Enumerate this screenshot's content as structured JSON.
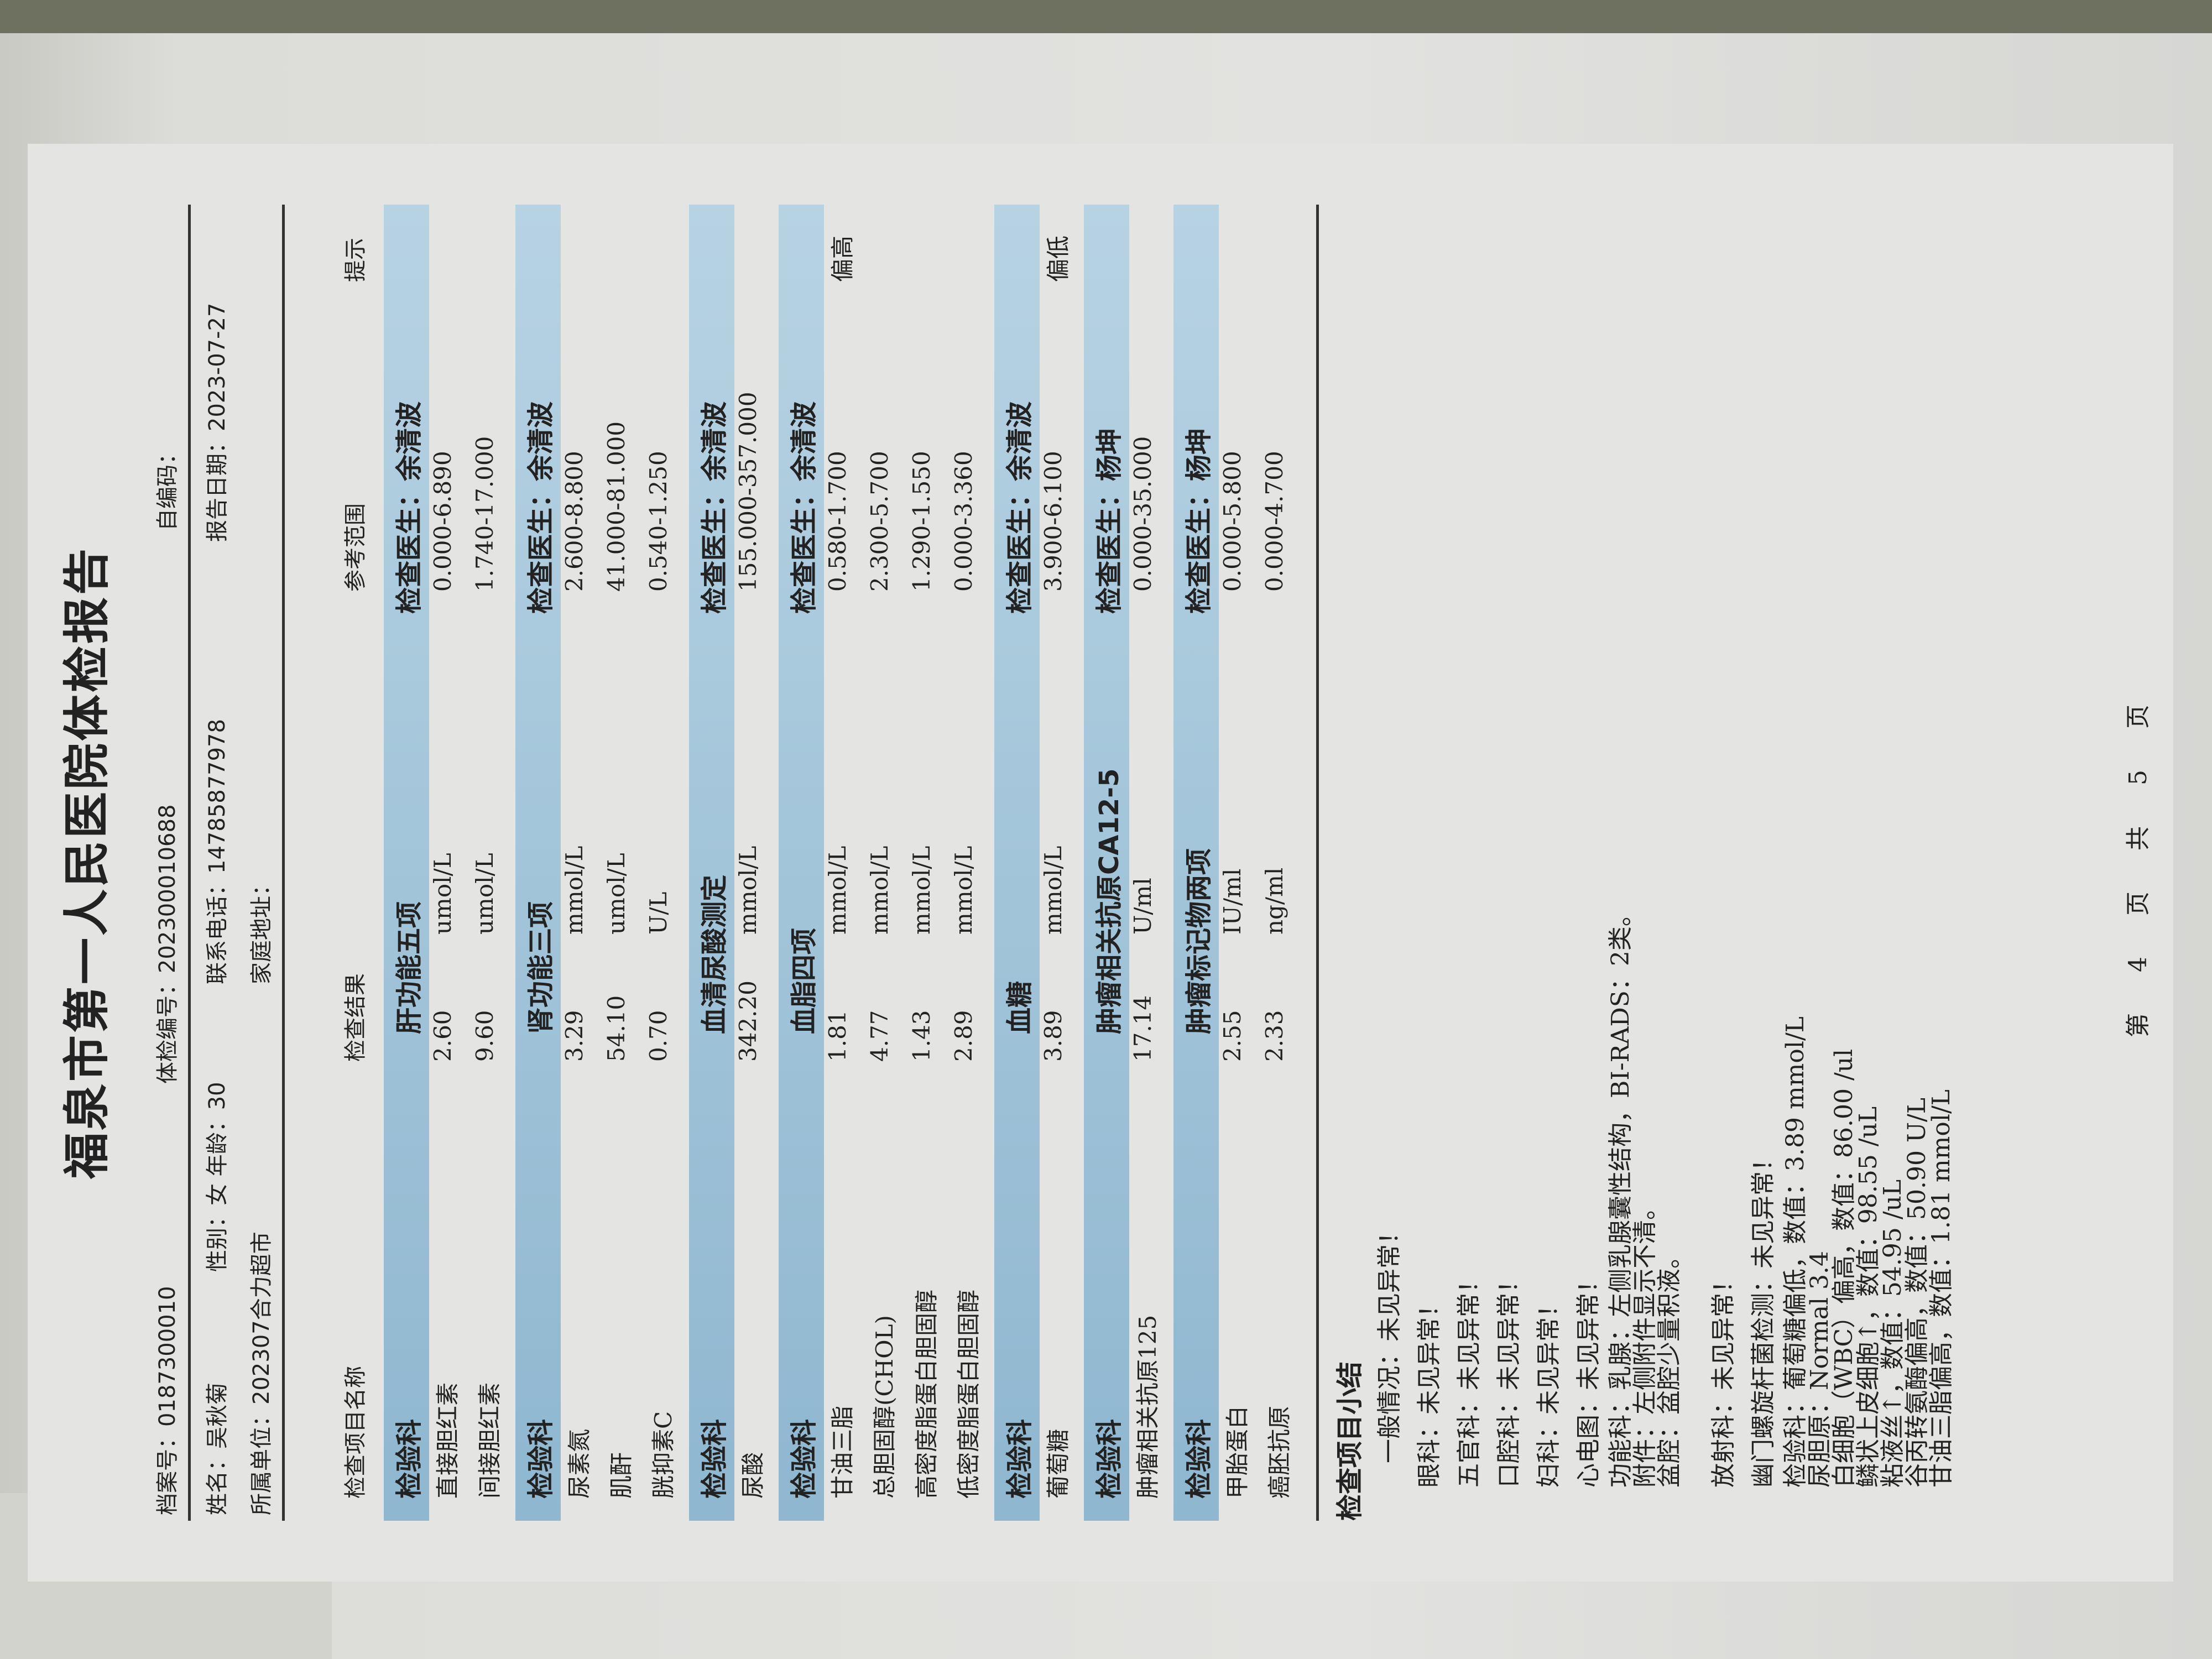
{
  "header": {
    "title": "福泉市第一人民医院体检报告",
    "archive_no": "档案号：0187300010",
    "exam_no": "体检编号：202300010688",
    "self_code": "自编码：",
    "name": "姓名：吴秋菊",
    "gender_age": "性别：女  年龄：30",
    "phone": "联系电话：14785877978",
    "report_date": "报告日期：2023-07-27",
    "unit": "所属单位：202307合力超市",
    "address": "家庭地址："
  },
  "columns": {
    "name": "检查项目名称",
    "result": "检查结果",
    "range": "参考范围",
    "hint": "提示"
  },
  "sections": [
    {
      "dept": "检验科",
      "title": "肝功能五项",
      "doctor": "检查医生：余清波",
      "rows": [
        {
          "name": "直接胆红素",
          "result": "2.60",
          "unit": "umol/L",
          "range": "0.000-6.890",
          "hint": ""
        },
        {
          "name": "间接胆红素",
          "result": "9.60",
          "unit": "umol/L",
          "range": "1.740-17.000",
          "hint": ""
        }
      ]
    },
    {
      "dept": "检验科",
      "title": "肾功能三项",
      "doctor": "检查医生：余清波",
      "rows": [
        {
          "name": "尿素氮",
          "result": "3.29",
          "unit": "mmol/L",
          "range": "2.600-8.800",
          "hint": ""
        },
        {
          "name": "肌酐",
          "result": "54.10",
          "unit": "umol/L",
          "range": "41.000-81.000",
          "hint": ""
        },
        {
          "name": "胱抑素C",
          "result": "0.70",
          "unit": "U/L",
          "range": "0.540-1.250",
          "hint": ""
        }
      ]
    },
    {
      "dept": "检验科",
      "title": "血清尿酸测定",
      "doctor": "检查医生：余清波",
      "rows": [
        {
          "name": "尿酸",
          "result": "342.20",
          "unit": "mmol/L",
          "range": "155.000-357.000",
          "hint": ""
        }
      ]
    },
    {
      "dept": "检验科",
      "title": "血脂四项",
      "doctor": "检查医生：余清波",
      "rows": [
        {
          "name": "甘油三脂",
          "result": "1.81",
          "unit": "mmol/L",
          "range": "0.580-1.700",
          "hint": "偏高"
        },
        {
          "name": "总胆固醇(CHOL)",
          "result": "4.77",
          "unit": "mmol/L",
          "range": "2.300-5.700",
          "hint": ""
        },
        {
          "name": "高密度脂蛋白胆固醇",
          "result": "1.43",
          "unit": "mmol/L",
          "range": "1.290-1.550",
          "hint": ""
        },
        {
          "name": "低密度脂蛋白胆固醇",
          "result": "2.89",
          "unit": "mmol/L",
          "range": "0.000-3.360",
          "hint": ""
        }
      ]
    },
    {
      "dept": "检验科",
      "title": "血糖",
      "doctor": "检查医生：余清波",
      "rows": [
        {
          "name": "葡萄糖",
          "result": "3.89",
          "unit": "mmol/L",
          "range": "3.900-6.100",
          "hint": "偏低"
        }
      ]
    },
    {
      "dept": "检验科",
      "title": "肿瘤相关抗原CA12-5",
      "doctor": "检查医生：杨坤",
      "rows": [
        {
          "name": "肿瘤相关抗原125",
          "result": "17.14",
          "unit": "U/ml",
          "range": "0.000-35.000",
          "hint": ""
        }
      ]
    },
    {
      "dept": "检验科",
      "title": "肿瘤标记物两项",
      "doctor": "检查医生：杨坤",
      "rows": [
        {
          "name": "甲胎蛋白",
          "result": "2.55",
          "unit": "IU/ml",
          "range": "0.000-5.800",
          "hint": ""
        },
        {
          "name": "癌胚抗原",
          "result": "2.33",
          "unit": "ng/ml",
          "range": "0.000-4.700",
          "hint": ""
        }
      ]
    }
  ],
  "summary": {
    "title": "检查项目小结",
    "lines": [
      "　一般情况：未见异常！",
      "眼科：未见异常！",
      "五官科：未见异常！",
      "口腔科：未见异常！",
      "妇科：未见异常！",
      "心电图：未见异常！"
    ],
    "functional": [
      "功能科：乳腺：左侧乳腺囊性结构，BI-RADS：2类。",
      "附件：左侧附件显示不清。",
      "盆腔：盆腔少量积液。"
    ],
    "lines2": [
      "放射科：未见异常！",
      "幽门螺旋杆菌检测：未见异常！"
    ],
    "lab": [
      "检验科：葡萄糖偏低，数值：3.89 mmol/L",
      "尿胆原：Normal 3.4",
      "白细胞（WBC）偏高，数值：86.00 /ul",
      "鳞状上皮细胞↑，数值：98.55 /uL",
      "粘液丝↑，数值：54.95 /uL",
      "谷丙转氨酶偏高，数值：50.90 U/L",
      "甘油三脂偏高，数值：1.81 mmol/L"
    ]
  },
  "footer": {
    "page": "第 4 页 共 5 页"
  }
}
